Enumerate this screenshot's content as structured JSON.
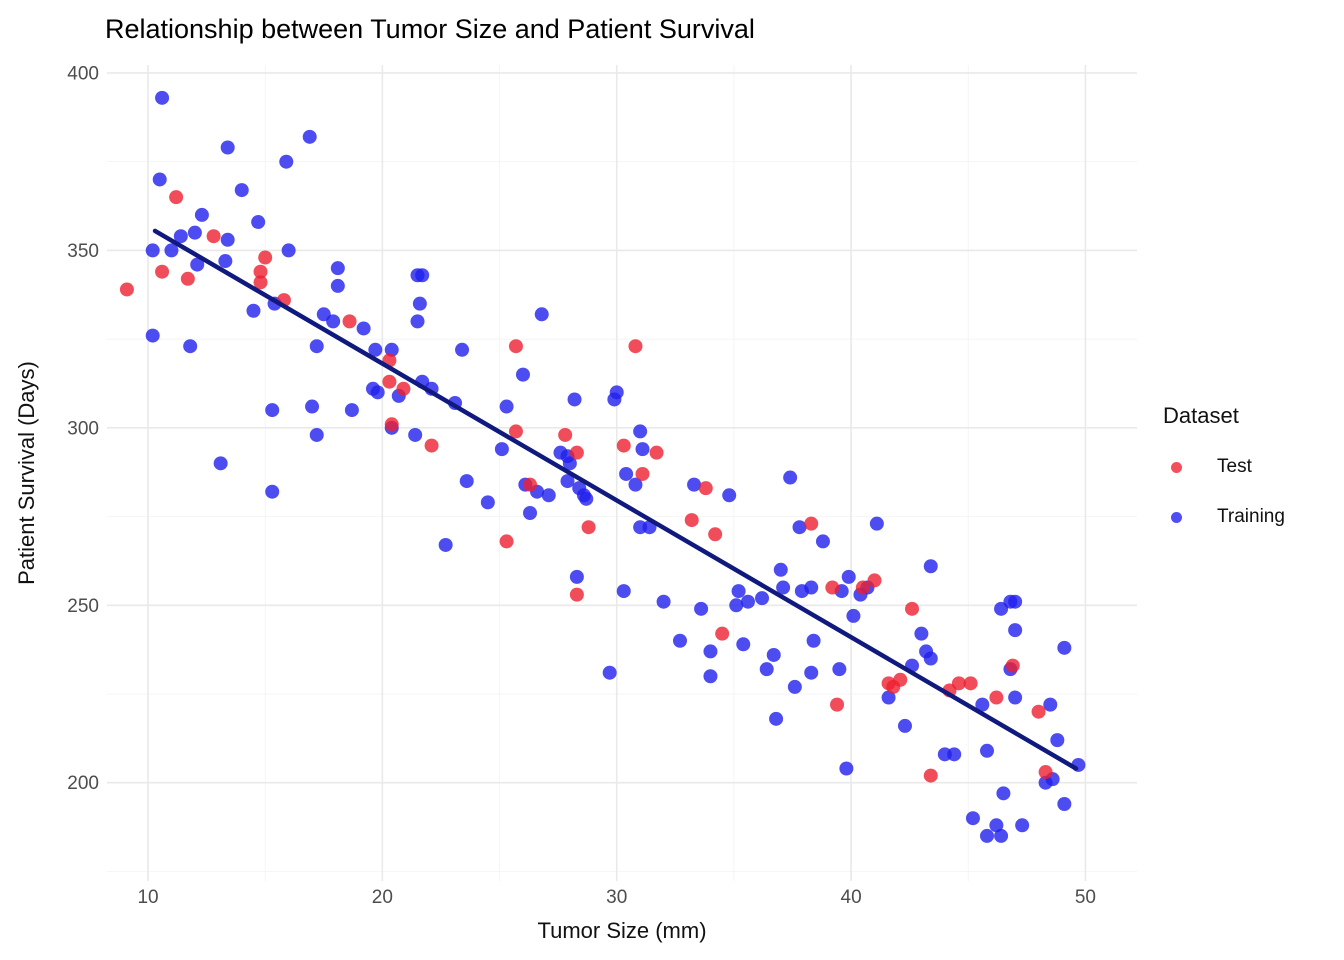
{
  "title": "Relationship between Tumor Size and Patient Survival",
  "colors": {
    "background": "#FFFFFF",
    "grid_major": "#E9E9E9",
    "grid_minor": "#F4F4F4",
    "tick_text": "#4D4D4D",
    "text": "#000000",
    "test_point": "#EE1F30",
    "training_point": "#1F1FEE",
    "test_swatch": "#F4505C",
    "training_swatch": "#4E4EF4",
    "trend_line": "#10197E"
  },
  "chart_data": {
    "type": "scatter",
    "title": "Relationship between Tumor Size and Patient Survival",
    "xlabel": "Tumor Size (mm)",
    "ylabel": "Patient Survival (Days)",
    "xlim": [
      8.25,
      52.2
    ],
    "ylim": [
      172.3,
      402.25
    ],
    "x_ticks": [
      10,
      20,
      30,
      40,
      50
    ],
    "y_ticks": [
      200,
      250,
      300,
      350,
      400
    ],
    "x_minor_ticks": [
      15,
      25,
      35,
      45
    ],
    "y_minor_ticks": [
      175,
      225,
      275,
      325,
      375
    ],
    "grid": true,
    "point_opacity": 0.8,
    "point_radius": 7,
    "legend": {
      "title": "Dataset",
      "position": "right",
      "entries": [
        {
          "label": "Test",
          "color": "#F4505C"
        },
        {
          "label": "Training",
          "color": "#4E4EF4"
        }
      ]
    },
    "trend_line": {
      "x": [
        10.3,
        49.6
      ],
      "y": [
        355.5,
        204.0
      ],
      "color": "#10197E",
      "width": 4.5
    },
    "series": [
      {
        "name": "Training",
        "color": "#1F1FEE",
        "points": [
          [
            10.6,
            393
          ],
          [
            16.9,
            382
          ],
          [
            13.4,
            379
          ],
          [
            15.9,
            375
          ],
          [
            10.5,
            370
          ],
          [
            14.0,
            367
          ],
          [
            12.3,
            360
          ],
          [
            14.7,
            358
          ],
          [
            11.4,
            354
          ],
          [
            12.0,
            355
          ],
          [
            13.4,
            353
          ],
          [
            10.2,
            350
          ],
          [
            11.0,
            350
          ],
          [
            16.0,
            350
          ],
          [
            12.1,
            346
          ],
          [
            13.3,
            347
          ],
          [
            18.1,
            345
          ],
          [
            18.1,
            340
          ],
          [
            21.5,
            343
          ],
          [
            21.7,
            343
          ],
          [
            21.6,
            335
          ],
          [
            21.5,
            330
          ],
          [
            15.4,
            335
          ],
          [
            14.5,
            333
          ],
          [
            17.5,
            332
          ],
          [
            17.9,
            330
          ],
          [
            19.2,
            328
          ],
          [
            10.2,
            326
          ],
          [
            11.8,
            323
          ],
          [
            17.2,
            323
          ],
          [
            19.7,
            322
          ],
          [
            20.4,
            322
          ],
          [
            23.4,
            322
          ],
          [
            26.8,
            332
          ],
          [
            19.6,
            311
          ],
          [
            19.8,
            310
          ],
          [
            20.7,
            309
          ],
          [
            21.7,
            313
          ],
          [
            22.1,
            311
          ],
          [
            23.1,
            307
          ],
          [
            15.3,
            305
          ],
          [
            17.0,
            306
          ],
          [
            18.7,
            305
          ],
          [
            20.4,
            300
          ],
          [
            21.4,
            298
          ],
          [
            17.2,
            298
          ],
          [
            13.1,
            290
          ],
          [
            15.3,
            282
          ],
          [
            22.7,
            267
          ],
          [
            26.0,
            315
          ],
          [
            28.2,
            308
          ],
          [
            30.0,
            310
          ],
          [
            29.9,
            308
          ],
          [
            25.3,
            306
          ],
          [
            25.1,
            294
          ],
          [
            31.0,
            299
          ],
          [
            27.6,
            293
          ],
          [
            27.9,
            292
          ],
          [
            28.0,
            290
          ],
          [
            27.9,
            285
          ],
          [
            28.4,
            283
          ],
          [
            28.7,
            280
          ],
          [
            31.1,
            294
          ],
          [
            30.4,
            287
          ],
          [
            30.8,
            284
          ],
          [
            23.6,
            285
          ],
          [
            24.5,
            279
          ],
          [
            26.1,
            284
          ],
          [
            26.6,
            282
          ],
          [
            27.1,
            281
          ],
          [
            26.3,
            276
          ],
          [
            28.6,
            281
          ],
          [
            31.0,
            272
          ],
          [
            31.4,
            272
          ],
          [
            33.3,
            284
          ],
          [
            34.8,
            281
          ],
          [
            37.4,
            286
          ],
          [
            28.3,
            258
          ],
          [
            30.3,
            254
          ],
          [
            32.0,
            251
          ],
          [
            33.6,
            249
          ],
          [
            35.2,
            254
          ],
          [
            35.1,
            250
          ],
          [
            35.6,
            251
          ],
          [
            37.0,
            260
          ],
          [
            37.1,
            255
          ],
          [
            36.2,
            252
          ],
          [
            37.8,
            272
          ],
          [
            38.8,
            268
          ],
          [
            41.1,
            273
          ],
          [
            39.9,
            258
          ],
          [
            38.3,
            255
          ],
          [
            37.9,
            254
          ],
          [
            39.6,
            254
          ],
          [
            40.7,
            255
          ],
          [
            40.4,
            253
          ],
          [
            43.4,
            261
          ],
          [
            40.1,
            247
          ],
          [
            46.4,
            249
          ],
          [
            46.8,
            251
          ],
          [
            47.0,
            251
          ],
          [
            29.7,
            231
          ],
          [
            32.7,
            240
          ],
          [
            34.0,
            237
          ],
          [
            34.0,
            230
          ],
          [
            35.4,
            239
          ],
          [
            36.7,
            236
          ],
          [
            36.4,
            232
          ],
          [
            37.6,
            227
          ],
          [
            36.8,
            218
          ],
          [
            38.4,
            240
          ],
          [
            38.3,
            231
          ],
          [
            39.5,
            232
          ],
          [
            43.0,
            242
          ],
          [
            43.2,
            237
          ],
          [
            43.4,
            235
          ],
          [
            42.6,
            233
          ],
          [
            47.0,
            243
          ],
          [
            46.8,
            232
          ],
          [
            47.0,
            224
          ],
          [
            49.1,
            238
          ],
          [
            41.6,
            224
          ],
          [
            45.6,
            222
          ],
          [
            48.5,
            222
          ],
          [
            42.3,
            216
          ],
          [
            39.8,
            204
          ],
          [
            44.0,
            208
          ],
          [
            44.4,
            208
          ],
          [
            45.8,
            209
          ],
          [
            48.8,
            212
          ],
          [
            49.7,
            205
          ],
          [
            48.6,
            201
          ],
          [
            48.3,
            200
          ],
          [
            46.5,
            197
          ],
          [
            49.1,
            194
          ],
          [
            45.2,
            190
          ],
          [
            46.2,
            188
          ],
          [
            45.8,
            185
          ],
          [
            46.4,
            185
          ],
          [
            47.3,
            188
          ]
        ]
      },
      {
        "name": "Test",
        "color": "#EE1F30",
        "points": [
          [
            11.2,
            365
          ],
          [
            12.8,
            354
          ],
          [
            10.6,
            344
          ],
          [
            11.7,
            342
          ],
          [
            9.1,
            339
          ],
          [
            14.8,
            344
          ],
          [
            14.8,
            341
          ],
          [
            15.0,
            348
          ],
          [
            15.8,
            336
          ],
          [
            18.6,
            330
          ],
          [
            20.3,
            319
          ],
          [
            20.3,
            313
          ],
          [
            20.9,
            311
          ],
          [
            20.4,
            301
          ],
          [
            22.1,
            295
          ],
          [
            25.7,
            323
          ],
          [
            30.8,
            323
          ],
          [
            25.7,
            299
          ],
          [
            27.8,
            298
          ],
          [
            28.3,
            293
          ],
          [
            30.3,
            295
          ],
          [
            31.7,
            293
          ],
          [
            31.1,
            287
          ],
          [
            26.3,
            284
          ],
          [
            33.8,
            283
          ],
          [
            28.8,
            272
          ],
          [
            25.3,
            268
          ],
          [
            33.2,
            274
          ],
          [
            34.2,
            270
          ],
          [
            28.3,
            253
          ],
          [
            38.3,
            273
          ],
          [
            39.2,
            255
          ],
          [
            40.5,
            255
          ],
          [
            41.0,
            257
          ],
          [
            42.6,
            249
          ],
          [
            34.5,
            242
          ],
          [
            39.4,
            222
          ],
          [
            41.6,
            228
          ],
          [
            42.1,
            229
          ],
          [
            41.8,
            227
          ],
          [
            44.2,
            226
          ],
          [
            44.6,
            228
          ],
          [
            45.1,
            228
          ],
          [
            46.2,
            224
          ],
          [
            46.9,
            233
          ],
          [
            48.0,
            220
          ],
          [
            43.4,
            202
          ],
          [
            48.3,
            203
          ]
        ]
      }
    ]
  }
}
